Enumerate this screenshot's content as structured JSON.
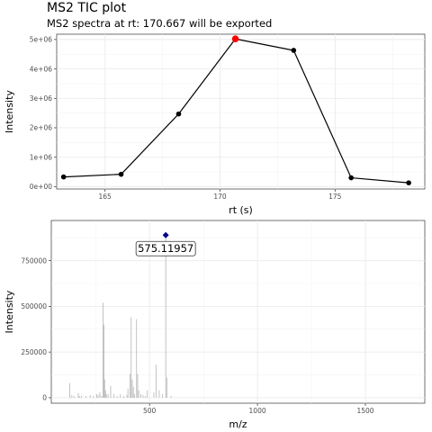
{
  "page": {
    "title": "MS2 TIC plot",
    "subtitle": "MS2 spectra at rt: 170.667 will be exported"
  },
  "chart_data": [
    {
      "type": "line",
      "xlabel": "rt (s)",
      "ylabel": "Intensity",
      "xlim": [
        162.9,
        178.9
      ],
      "ylim": [
        -80000,
        5180000
      ],
      "x_ticks": [
        165,
        170,
        175
      ],
      "y_ticks": [
        0,
        1000000,
        2000000,
        3000000,
        4000000,
        5000000
      ],
      "y_tick_labels": [
        "0e+00",
        "1e+06",
        "2e+06",
        "3e+06",
        "4e+06",
        "5e+06"
      ],
      "grid": true,
      "series": [
        {
          "x": [
            163.2,
            165.7,
            168.2,
            170.667,
            173.2,
            175.7,
            178.2
          ],
          "y": [
            330000,
            420000,
            2470000,
            5020000,
            4630000,
            300000,
            130000
          ],
          "color": "#000000"
        }
      ],
      "highlight": {
        "x": 170.667,
        "y": 5020000,
        "color": "#ff0000"
      }
    },
    {
      "type": "bar",
      "xlabel": "m/z",
      "ylabel": "Intensity",
      "xlim": [
        45,
        1775
      ],
      "ylim": [
        -30000,
        970000
      ],
      "x_ticks": [
        500,
        1000,
        1500
      ],
      "y_ticks": [
        0,
        250000,
        500000,
        750000
      ],
      "y_tick_labels": [
        "0",
        "250000",
        "500000",
        "750000"
      ],
      "grid": true,
      "bar_color": "#b3b3b3",
      "peaks": {
        "mz": [
          130,
          140,
          150,
          170,
          175,
          185,
          205,
          225,
          240,
          255,
          262,
          270,
          278,
          285,
          289,
          292,
          296,
          300,
          308,
          320,
          335,
          350,
          365,
          380,
          395,
          400,
          410,
          415,
          420,
          425,
          430,
          440,
          445,
          450,
          460,
          470,
          480,
          490,
          520,
          530,
          545,
          560,
          575.11957,
          580,
          600
        ],
        "intensity": [
          80000,
          15000,
          10000,
          25000,
          10000,
          10000,
          10000,
          15000,
          10000,
          20000,
          15000,
          30000,
          10000,
          520000,
          400000,
          100000,
          40000,
          20000,
          20000,
          65000,
          20000,
          10000,
          20000,
          10000,
          15000,
          50000,
          130000,
          440000,
          100000,
          60000,
          20000,
          430000,
          130000,
          40000,
          20000,
          15000,
          10000,
          40000,
          30000,
          180000,
          40000,
          20000,
          890000,
          110000,
          10000
        ]
      },
      "highlight": {
        "mz": 575.11957,
        "intensity": 890000,
        "label": "575.11957",
        "color": "#00008b"
      }
    }
  ]
}
